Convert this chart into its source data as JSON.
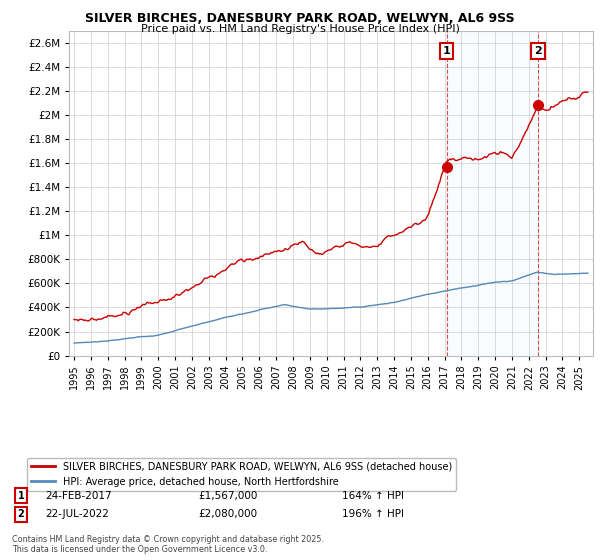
{
  "title_line1": "SILVER BIRCHES, DANESBURY PARK ROAD, WELWYN, AL6 9SS",
  "title_line2": "Price paid vs. HM Land Registry's House Price Index (HPI)",
  "legend_label1": "SILVER BIRCHES, DANESBURY PARK ROAD, WELWYN, AL6 9SS (detached house)",
  "legend_label2": "HPI: Average price, detached house, North Hertfordshire",
  "annotation1_label": "1",
  "annotation1_date": "24-FEB-2017",
  "annotation1_price": "£1,567,000",
  "annotation1_hpi": "164% ↑ HPI",
  "annotation1_year": 2017.13,
  "annotation1_value": 1567000,
  "annotation2_label": "2",
  "annotation2_date": "22-JUL-2022",
  "annotation2_price": "£2,080,000",
  "annotation2_hpi": "196% ↑ HPI",
  "annotation2_year": 2022.55,
  "annotation2_value": 2080000,
  "footer": "Contains HM Land Registry data © Crown copyright and database right 2025.\nThis data is licensed under the Open Government Licence v3.0.",
  "red_color": "#cc0000",
  "blue_color": "#5588bb",
  "shade_color": "#ddeeff",
  "annotation_box_color": "#cc0000",
  "ylim_max": 2700000,
  "ylim_min": 0,
  "background_color": "#ffffff",
  "grid_color": "#cccccc"
}
